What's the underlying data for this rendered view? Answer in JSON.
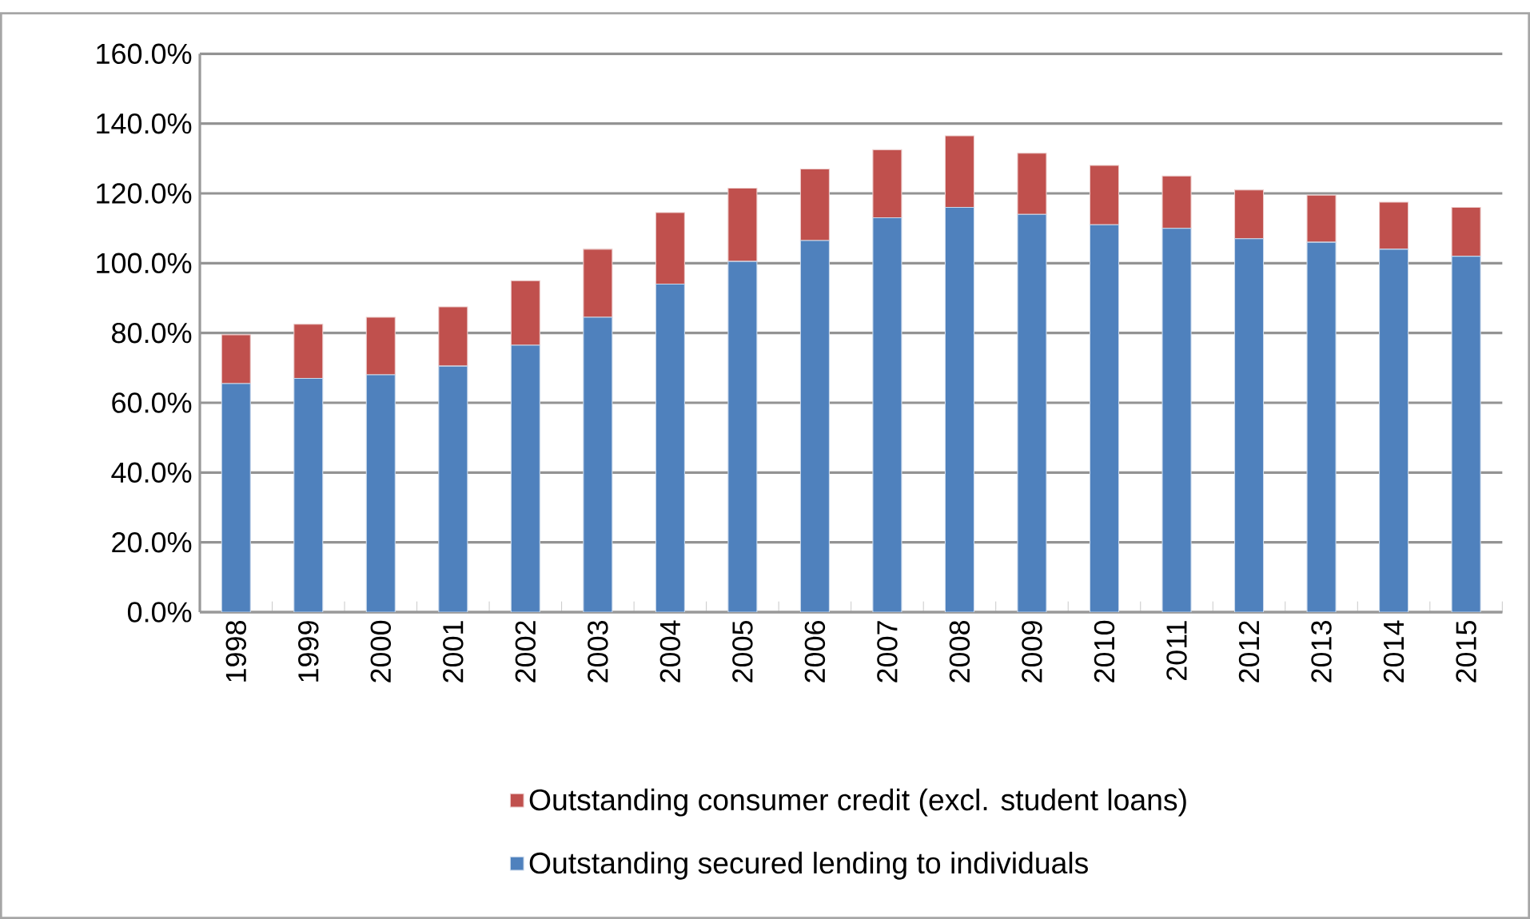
{
  "chart_data": {
    "type": "bar",
    "stacked": true,
    "categories": [
      "1998",
      "1999",
      "2000",
      "2001",
      "2002",
      "2003",
      "2004",
      "2005",
      "2006",
      "2007",
      "2008",
      "2009",
      "2010",
      "2011",
      "2012",
      "2013",
      "2014",
      "2015"
    ],
    "series": [
      {
        "name": "Outstanding secured lending to individuals",
        "color": "#4f81bd",
        "values": [
          65.5,
          67,
          68,
          70.5,
          76.5,
          84.5,
          94,
          100.5,
          106.5,
          113,
          116,
          114,
          111,
          110,
          107,
          106,
          104,
          102
        ]
      },
      {
        "name": "Outstanding consumer credit (excl. student loans)",
        "color": "#c0504d",
        "values": [
          14,
          15.5,
          16.5,
          17,
          18.5,
          19.5,
          20.5,
          21,
          20.5,
          19.5,
          20.5,
          17.5,
          17,
          15,
          14,
          13.5,
          13.5,
          14
        ]
      }
    ],
    "ylim": [
      0,
      160
    ],
    "yticks": [
      {
        "value": 0,
        "label": "0.0%"
      },
      {
        "value": 20,
        "label": "20.0%"
      },
      {
        "value": 40,
        "label": "40.0%"
      },
      {
        "value": 60,
        "label": "60.0%"
      },
      {
        "value": 80,
        "label": "80.0%"
      },
      {
        "value": 100,
        "label": "100.0%"
      },
      {
        "value": 120,
        "label": "120.0%"
      },
      {
        "value": 140,
        "label": "140.0%"
      },
      {
        "value": 160,
        "label": "160.0%"
      }
    ],
    "grid": "y",
    "legend": "bottom"
  }
}
